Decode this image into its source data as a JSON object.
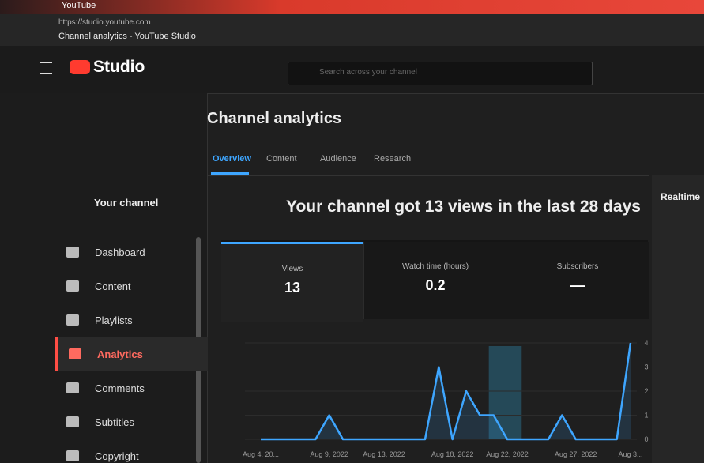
{
  "browser": {
    "tab_title": "YouTube",
    "url": "https://studio.youtube.com",
    "page_title": "Channel analytics - YouTube Studio"
  },
  "header": {
    "logo": "Studio",
    "search_placeholder": "Search across your channel"
  },
  "sidebar": {
    "channel": "Your channel",
    "items": [
      "Dashboard",
      "Content",
      "Playlists",
      "Analytics",
      "Comments",
      "Subtitles",
      "Copyright"
    ],
    "active": 3
  },
  "page": {
    "title": "Channel analytics",
    "tabs": [
      "Overview",
      "Content",
      "Audience",
      "Research"
    ],
    "active_tab": 0,
    "headline": "Your channel got 13 views in the last 28 days",
    "cards": [
      {
        "label": "Views",
        "value": 13
      },
      {
        "label": "Watch time (hours)",
        "value": 0.2
      },
      {
        "label": "Subscribers",
        "value": "—"
      }
    ]
  },
  "chart_data": {
    "type": "line",
    "categories": [
      "Aug 4, 20...",
      null,
      null,
      null,
      null,
      "Aug 9, 2022",
      null,
      null,
      null,
      "Aug 13, 2022",
      null,
      null,
      null,
      null,
      "Aug 18, 2022",
      null,
      null,
      null,
      "Aug 22, 2022",
      null,
      null,
      null,
      null,
      "Aug 27, 2022",
      null,
      null,
      null,
      "Aug 3..."
    ],
    "values": [
      0,
      0,
      0,
      0,
      0,
      1,
      0,
      0,
      0,
      0,
      0,
      0,
      0,
      3,
      0,
      2,
      1,
      1,
      0,
      0,
      0,
      0,
      1,
      0,
      0,
      0,
      0,
      4
    ],
    "color": "#3ea6ff",
    "ylim": [
      0,
      4
    ],
    "yticks": [
      0,
      1,
      2,
      3,
      4
    ],
    "grid": true
  },
  "realtime": {
    "title": "Realtime"
  }
}
